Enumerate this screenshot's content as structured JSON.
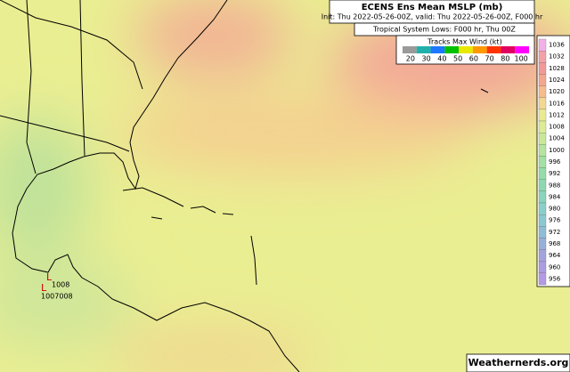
{
  "header": {
    "title": "ECENS Ens Mean MSLP (mb)",
    "subtitle": "Init: Thu 2022-05-26-00Z, valid: Thu 2022-05-26-00Z, F000 hr"
  },
  "lows_legend": "Tropical System Lows: F000 hr, Thu 00Z",
  "wind_legend": {
    "title": "Tracks Max Wind (kt)",
    "ticks": [
      20,
      30,
      40,
      50,
      60,
      70,
      80,
      100
    ],
    "colors": [
      "#9a9a9a",
      "#20b2aa",
      "#1e78ff",
      "#00c000",
      "#e8e800",
      "#ff9900",
      "#ff3300",
      "#e00060",
      "#ff00ff"
    ]
  },
  "colorbar": {
    "levels": [
      1036,
      1032,
      1028,
      1024,
      1020,
      1016,
      1012,
      1008,
      1004,
      1000,
      996,
      992,
      988,
      984,
      980,
      976,
      972,
      968,
      964,
      960,
      956
    ],
    "colors": [
      "#f4b0e8",
      "#f4a0a8",
      "#f29a98",
      "#f5a690",
      "#f7bc8c",
      "#f2d890",
      "#eaea90",
      "#dcec92",
      "#c8e898",
      "#b4e4a0",
      "#a2e0a4",
      "#96dca8",
      "#8ed8b0",
      "#8ad4bc",
      "#8ad0c8",
      "#8cc8d0",
      "#90bcd4",
      "#98b0d8",
      "#a4a4dc",
      "#ac9ce0",
      "#b49ae4"
    ]
  },
  "lows": [
    {
      "symbol": "L",
      "label": "1008"
    },
    {
      "symbol": "L",
      "label": "1007008"
    }
  ],
  "watermark": "Weathernerds.org"
}
